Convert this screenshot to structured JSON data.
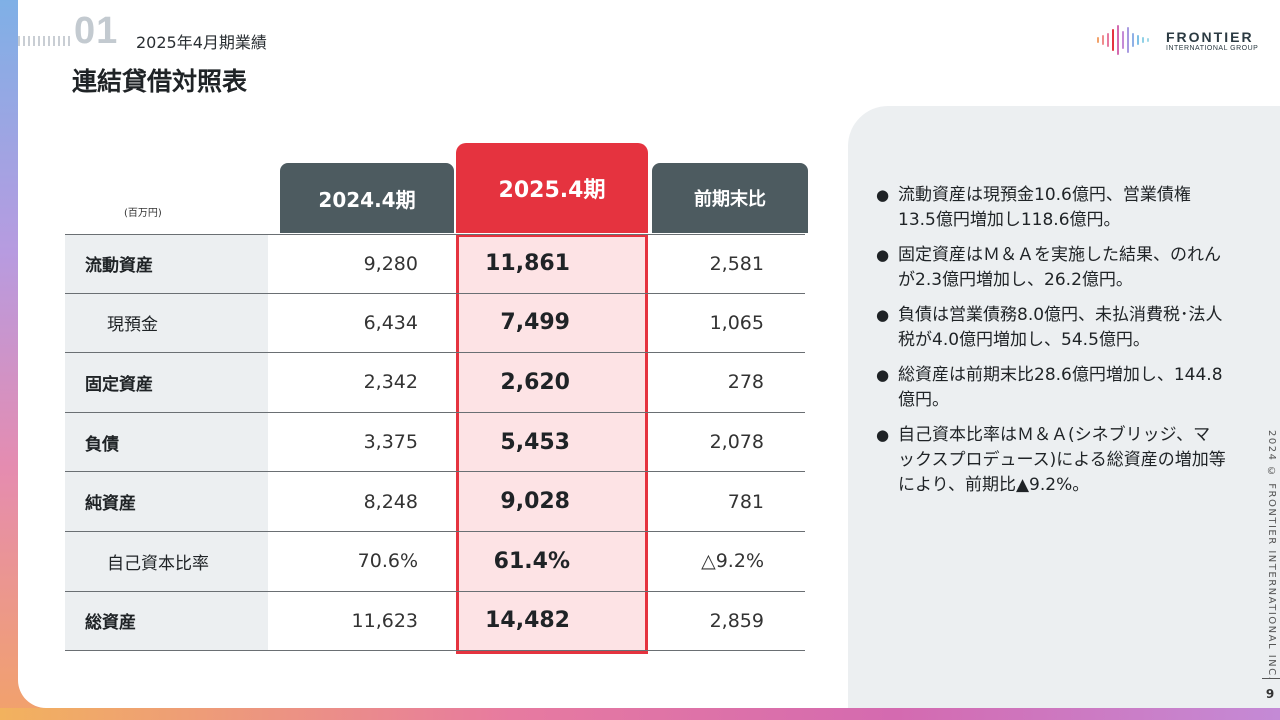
{
  "header": {
    "section_number": "01",
    "section_label": "2025年4月期業績",
    "title": "連結貸借対照表"
  },
  "logo": {
    "main": "FRONTIER",
    "sub": "INTERNATIONAL GROUP"
  },
  "table": {
    "unit": "(百万円)",
    "columns": [
      "2024.4期",
      "2025.4期",
      "前期末比"
    ],
    "rows": [
      {
        "label": "流動資産",
        "v2024": "9,280",
        "v2025": "11,861",
        "diff": "2,581"
      },
      {
        "label": "現預金",
        "v2024": "6,434",
        "v2025": "7,499",
        "diff": "1,065"
      },
      {
        "label": "固定資産",
        "v2024": "2,342",
        "v2025": "2,620",
        "diff": "278"
      },
      {
        "label": "負債",
        "v2024": "3,375",
        "v2025": "5,453",
        "diff": "2,078"
      },
      {
        "label": "純資産",
        "v2024": "8,248",
        "v2025": "9,028",
        "diff": "781"
      },
      {
        "label": "自己資本比率",
        "v2024": "70.6%",
        "v2025": "61.4%",
        "diff": "△9.2%"
      },
      {
        "label": "総資産",
        "v2024": "11,623",
        "v2025": "14,482",
        "diff": "2,859"
      }
    ]
  },
  "bullets": [
    "流動資産は現預金10.6億円、営業債権13.5億円増加し118.6億円。",
    "固定資産はＭ＆Ａを実施した結果、のれんが2.3億円増加し、26.2億円。",
    "負債は営業債務8.0億円、未払消費税･法人税が4.0億円増加し、54.5億円。",
    "総資産は前期末比28.6億円増加し、144.8億円。",
    "自己資本比率はＭ＆Ａ(シネブリッジ、マックスプロデュース)による総資産の増加等により、前期比▲9.2%。"
  ],
  "footer": {
    "copyright": "2024 © FRONTIER INTERNATIONAL INC.",
    "page_number": "9"
  },
  "colors": {
    "accent_red": "#e5333f",
    "header_dark": "#4d5b60",
    "highlight_fill": "#fde3e5",
    "label_bg": "#eceff1"
  }
}
